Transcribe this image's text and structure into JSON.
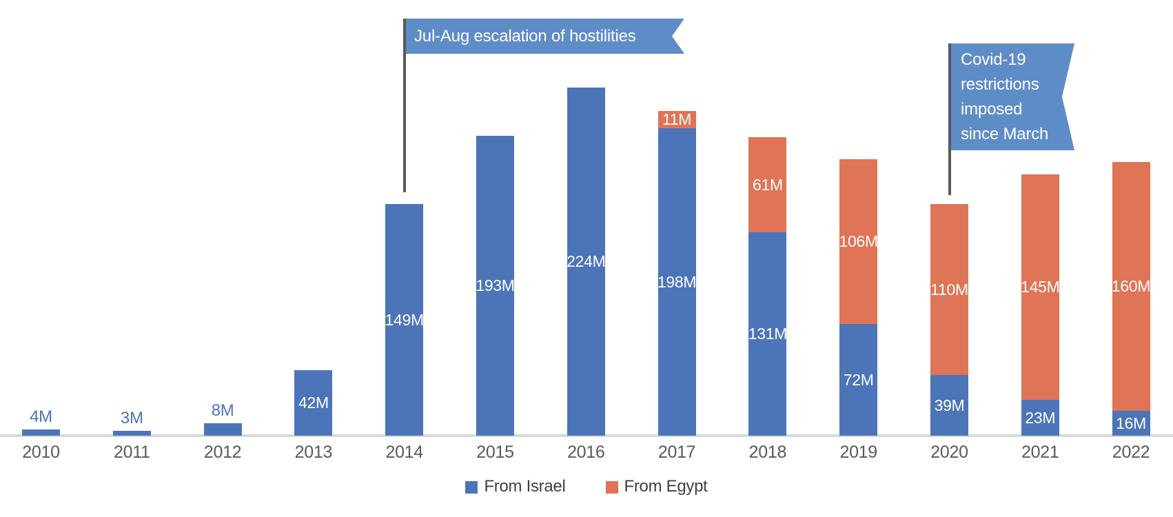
{
  "chart_data": {
    "type": "bar",
    "stacked": true,
    "title": "",
    "xlabel": "",
    "ylabel": "",
    "unit": "M",
    "value_label_format": "{value}M",
    "ylim": [
      0,
      224
    ],
    "grid": false,
    "y_axis_visible": false,
    "legend_position": "bottom",
    "categories": [
      "2010",
      "2011",
      "2012",
      "2013",
      "2014",
      "2015",
      "2016",
      "2017",
      "2018",
      "2019",
      "2020",
      "2021",
      "2022"
    ],
    "series": [
      {
        "name": "From Israel",
        "color": "#4C74B8",
        "values": [
          4,
          3,
          8,
          42,
          149,
          193,
          224,
          198,
          131,
          72,
          39,
          23,
          16
        ]
      },
      {
        "name": "From Egypt",
        "color": "#DF7456",
        "values": [
          0,
          0,
          0,
          0,
          0,
          0,
          0,
          11,
          61,
          106,
          110,
          145,
          160
        ]
      }
    ],
    "annotations": [
      {
        "text": "Jul-Aug escalation of hostilities",
        "target_year": "2014"
      },
      {
        "text": "Covid-19\nrestrictions\nimposed\nsince March",
        "target_year": "2020"
      }
    ]
  },
  "colors": {
    "bar_israel": "#4C74B8",
    "bar_egypt": "#DF7456",
    "annotation_flag": "#5E8CC7",
    "annotation_pole": "#58595B",
    "axis_line": "#D9D9D9",
    "year_label": "#595959",
    "legend_text": "#404040",
    "outside_value_label": "#4C74B8",
    "inside_value_label": "#FFFFFF"
  }
}
